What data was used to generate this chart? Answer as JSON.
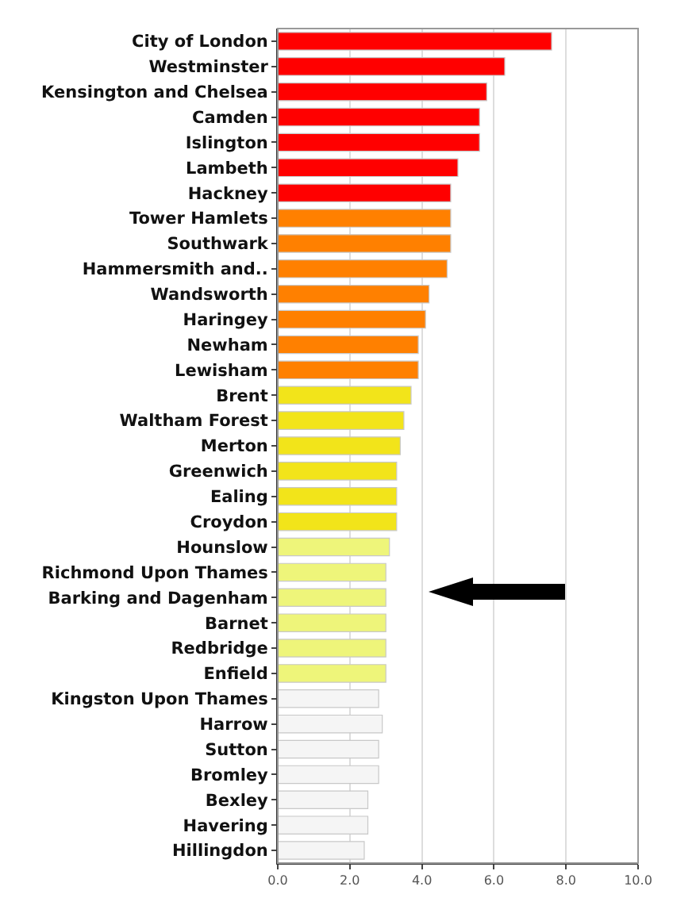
{
  "chart_data": {
    "type": "bar",
    "orientation": "horizontal",
    "categories": [
      "City of London",
      "Westminster",
      "Kensington and Chelsea",
      "Camden",
      "Islington",
      "Lambeth",
      "Hackney",
      "Tower Hamlets",
      "Southwark",
      "Hammersmith and..",
      "Wandsworth",
      "Haringey",
      "Newham",
      "Lewisham",
      "Brent",
      "Waltham Forest",
      "Merton",
      "Greenwich",
      "Ealing",
      "Croydon",
      "Hounslow",
      "Richmond Upon Thames",
      "Barking and Dagenham",
      "Barnet",
      "Redbridge",
      "Enfield",
      "Kingston Upon Thames",
      "Harrow",
      "Sutton",
      "Bromley",
      "Bexley",
      "Havering",
      "Hillingdon"
    ],
    "values": [
      7.6,
      6.3,
      5.8,
      5.6,
      5.6,
      5.0,
      4.8,
      4.8,
      4.8,
      4.7,
      4.2,
      4.1,
      3.9,
      3.9,
      3.7,
      3.5,
      3.4,
      3.3,
      3.3,
      3.3,
      3.1,
      3.0,
      3.0,
      3.0,
      3.0,
      3.0,
      2.8,
      2.9,
      2.8,
      2.8,
      2.5,
      2.5,
      2.4
    ],
    "colors": [
      "#ff0000",
      "#ff0000",
      "#ff0000",
      "#ff0000",
      "#ff0000",
      "#ff0000",
      "#ff0000",
      "#ff8000",
      "#ff8000",
      "#ff8000",
      "#ff8000",
      "#ff8000",
      "#ff8000",
      "#ff8000",
      "#f2e41a",
      "#f2e41a",
      "#f2e41a",
      "#f2e41a",
      "#f2e41a",
      "#f2e41a",
      "#eef57a",
      "#eef57a",
      "#eef57a",
      "#eef57a",
      "#eef57a",
      "#eef57a",
      "#f5f5f5",
      "#f5f5f5",
      "#f5f5f5",
      "#f5f5f5",
      "#f5f5f5",
      "#f5f5f5",
      "#f5f5f5"
    ],
    "xlim": [
      0,
      10
    ],
    "xticks": [
      {
        "value": 0,
        "label": "0.0"
      },
      {
        "value": 2,
        "label": "2.0"
      },
      {
        "value": 4,
        "label": "4.0"
      },
      {
        "value": 6,
        "label": "6.0"
      },
      {
        "value": 8,
        "label": "8.0"
      },
      {
        "value": 10,
        "label": "10.0"
      }
    ],
    "grid": "x"
  }
}
